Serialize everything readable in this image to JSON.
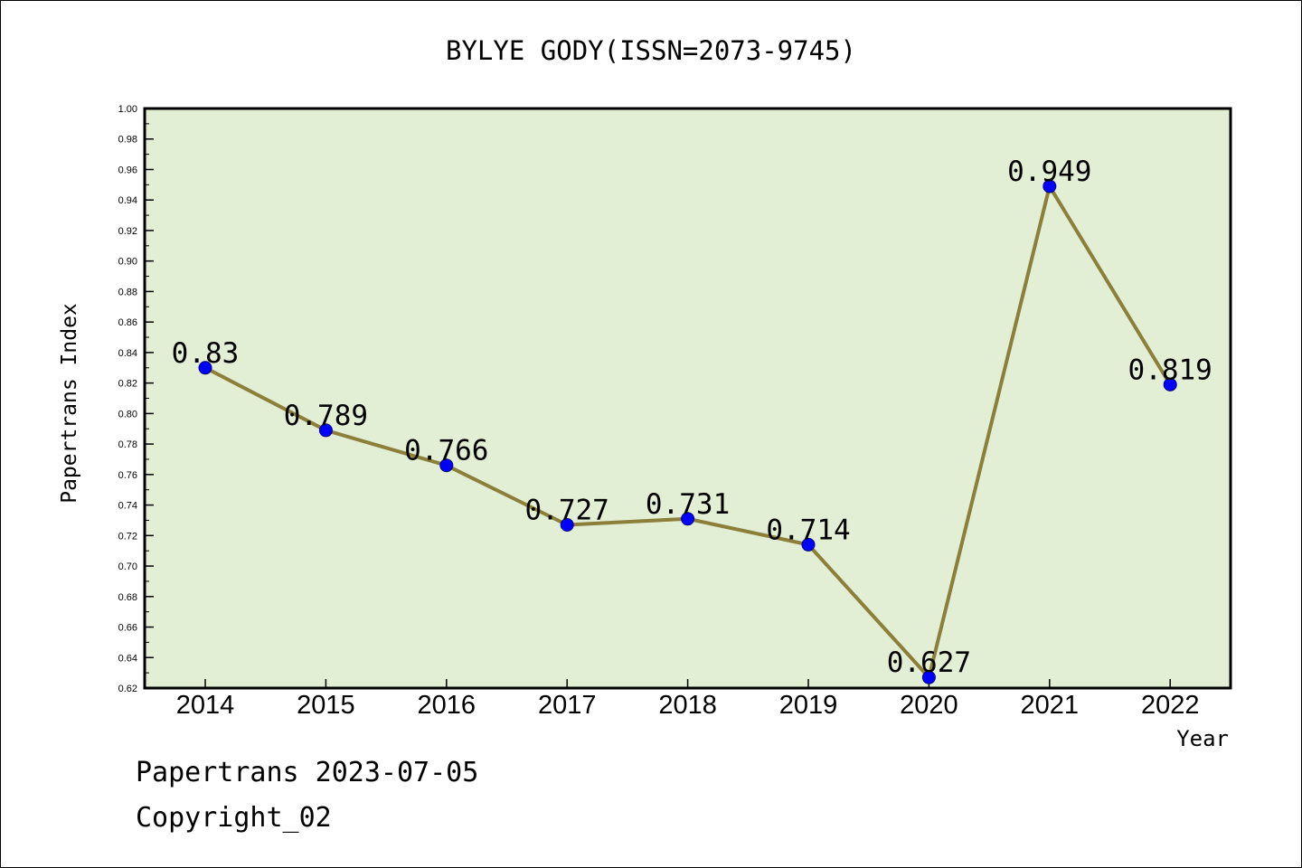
{
  "colors": {
    "plot_background": "#e2efd4",
    "line": "#8b7f3a",
    "marker": "#0000ff",
    "marker_edge": "#00007a"
  },
  "footer": {
    "line1": "Papertrans 2023-07-05",
    "line2": "Copyright_02"
  },
  "chart_data": {
    "type": "line",
    "title": "BYLYE GODY(ISSN=2073-9745)",
    "xlabel": "Year",
    "ylabel": "Papertrans Index",
    "categories": [
      "2014",
      "2015",
      "2016",
      "2017",
      "2018",
      "2019",
      "2020",
      "2021",
      "2022"
    ],
    "series": [
      {
        "values": [
          0.83,
          0.789,
          0.766,
          0.727,
          0.731,
          0.714,
          0.627,
          0.949,
          0.819
        ],
        "labels": [
          "0.83",
          "0.789",
          "0.766",
          "0.727",
          "0.731",
          "0.714",
          "0.627",
          "0.949",
          "0.819"
        ]
      }
    ],
    "ylim": [
      0.62,
      1.0
    ],
    "yticks": [
      "0.62",
      "0.64",
      "0.66",
      "0.68",
      "0.70",
      "0.72",
      "0.74",
      "0.76",
      "0.78",
      "0.80",
      "0.82",
      "0.84",
      "0.86",
      "0.88",
      "0.90",
      "0.92",
      "0.94",
      "0.96",
      "0.98",
      "1.00"
    ],
    "grid": false,
    "legend": "none"
  }
}
